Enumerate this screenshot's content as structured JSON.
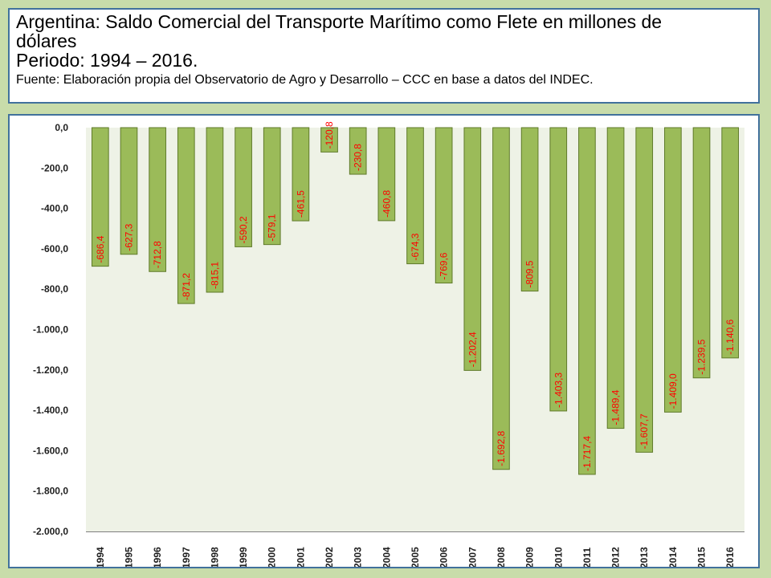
{
  "title": {
    "line1": "Argentina: Saldo Comercial del Transporte Marítimo como Flete en millones de",
    "line2": "dólares",
    "period": "Periodo: 1994 – 2016.",
    "source": "Fuente: Elaboración propia del Observatorio de Agro y Desarrollo – CCC en base a datos del INDEC."
  },
  "colors": {
    "bar_fill": "#9bbb59",
    "bar_stroke": "#5f7a2a",
    "label": "#ff0000",
    "axis_text": "#1f1f1f",
    "plot_bg": "#eef2e6"
  },
  "chart_data": {
    "type": "bar",
    "title": "",
    "xlabel": "",
    "ylabel": "",
    "ylim": [
      -2000,
      0
    ],
    "yticks": [
      0,
      -200,
      -400,
      -600,
      -800,
      -1000,
      -1200,
      -1400,
      -1600,
      -1800,
      -2000
    ],
    "ytick_labels": [
      "0,0",
      "-200,0",
      "-400,0",
      "-600,0",
      "-800,0",
      "-1.000,0",
      "-1.200,0",
      "-1.400,0",
      "-1.600,0",
      "-1.800,0",
      "-2.000,0"
    ],
    "categories": [
      "1994",
      "1995",
      "1996",
      "1997",
      "1998",
      "1999",
      "2000",
      "2001",
      "2002",
      "2003",
      "2004",
      "2005",
      "2006",
      "2007",
      "2008",
      "2009",
      "2010",
      "2011",
      "2012",
      "2013",
      "2014",
      "2015",
      "2016"
    ],
    "values": [
      -686.4,
      -627.3,
      -712.8,
      -871.2,
      -815.1,
      -590.2,
      -579.1,
      -461.5,
      -120.8,
      -230.8,
      -460.8,
      -674.3,
      -769.6,
      -1202.4,
      -1692.8,
      -809.5,
      -1403.3,
      -1717.4,
      -1489.4,
      -1607.7,
      -1409.0,
      -1239.5,
      -1140.6
    ],
    "value_labels": [
      "-686,4",
      "-627,3",
      "-712,8",
      "-871,2",
      "-815,1",
      "-590,2",
      "-579,1",
      "-461,5",
      "-120,8",
      "-230,8",
      "-460,8",
      "-674,3",
      "-769,6",
      "-1.202,4",
      "-1.692,8",
      "-809,5",
      "-1.403,3",
      "-1.717,4",
      "-1.489,4",
      "-1.607,7",
      "-1.409,0",
      "-1.239,5",
      "-1.140,6"
    ],
    "grid": false,
    "legend": "none"
  }
}
